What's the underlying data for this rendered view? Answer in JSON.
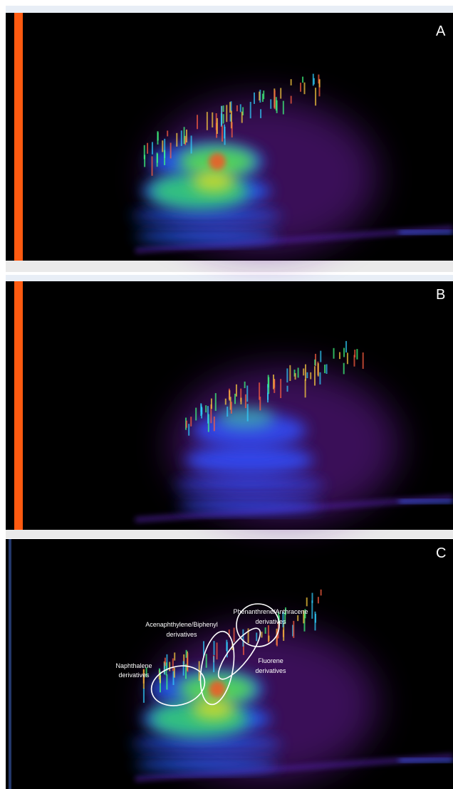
{
  "panels": [
    {
      "label": "A"
    },
    {
      "label": "B"
    },
    {
      "label": "C",
      "annotations": [
        {
          "lines": [
            "Phenanthrene/Anthracene",
            "derivatives"
          ]
        },
        {
          "lines": [
            "Acenaphthylene/Biphenyl",
            "derivatives"
          ]
        },
        {
          "lines": [
            "Naphthalene",
            "derivatives"
          ]
        },
        {
          "lines": [
            "Fluorene",
            "derivatives"
          ]
        }
      ]
    }
  ]
}
